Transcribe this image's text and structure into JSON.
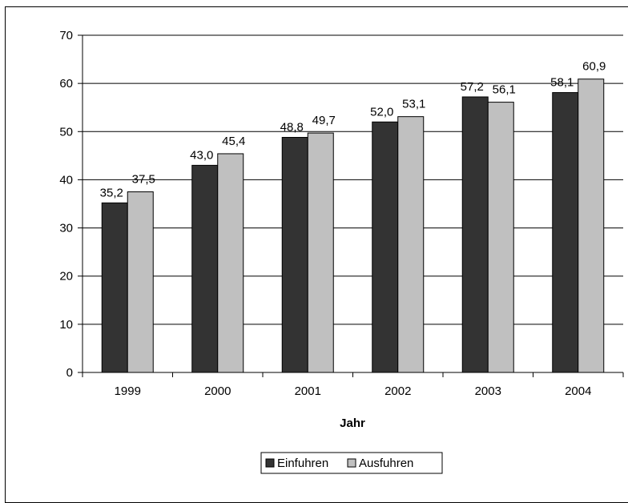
{
  "chart_data": {
    "type": "bar",
    "categories": [
      "1999",
      "2000",
      "2001",
      "2002",
      "2003",
      "2004"
    ],
    "series": [
      {
        "name": "Einfuhren",
        "values": [
          35.2,
          43.0,
          48.8,
          52.0,
          57.2,
          58.1
        ],
        "labels": [
          "35,2",
          "43,0",
          "48,8",
          "52,0",
          "57,2",
          "58,1"
        ],
        "color": "#333333"
      },
      {
        "name": "Ausfuhren",
        "values": [
          37.5,
          45.4,
          49.7,
          53.1,
          56.1,
          60.9
        ],
        "labels": [
          "37,5",
          "45,4",
          "49,7",
          "53,1",
          "56,1",
          "60,9"
        ],
        "color": "#c0c0c0"
      }
    ],
    "title": "",
    "xlabel": "Jahr",
    "ylabel": "",
    "ylim": [
      0,
      70
    ],
    "yticks": [
      "0",
      "10",
      "20",
      "30",
      "40",
      "50",
      "60",
      "70"
    ],
    "grid": true,
    "legend_position": "bottom"
  }
}
